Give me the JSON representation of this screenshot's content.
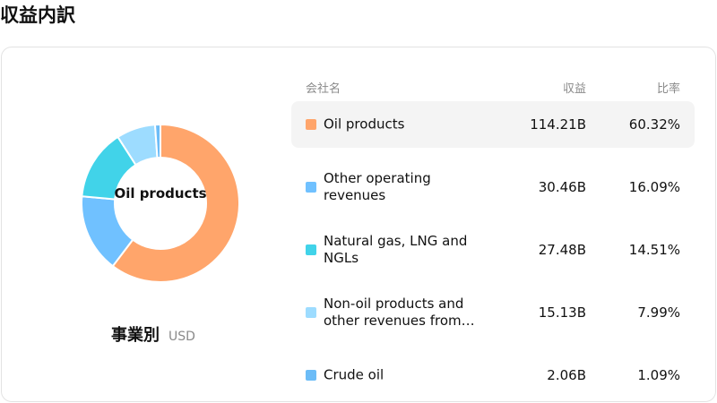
{
  "page": {
    "title": "収益内訳"
  },
  "donut": {
    "center_label": "Oil products",
    "caption_title": "事業別",
    "caption_unit": "USD"
  },
  "table": {
    "headers": {
      "name": "会社名",
      "revenue": "収益",
      "ratio": "比率"
    },
    "rows": [
      {
        "name": "Oil products",
        "revenue": "114.21B",
        "ratio": "60.32%",
        "color": "#ffa56b",
        "active": true
      },
      {
        "name": "Other operating revenues",
        "revenue": "30.46B",
        "ratio": "16.09%",
        "color": "#70c1ff",
        "active": false
      },
      {
        "name": "Natural gas, LNG and NGLs",
        "revenue": "27.48B",
        "ratio": "14.51%",
        "color": "#41d3e9",
        "active": false
      },
      {
        "name": "Non-oil products and other revenues from…",
        "revenue": "15.13B",
        "ratio": "7.99%",
        "color": "#9ddcff",
        "active": false
      },
      {
        "name": "Crude oil",
        "revenue": "2.06B",
        "ratio": "1.09%",
        "color": "#6cbcf7",
        "active": false
      }
    ]
  },
  "chart_data": {
    "type": "pie",
    "categories": [
      "Oil products",
      "Other operating revenues",
      "Natural gas, LNG and NGLs",
      "Non-oil products and other revenues from…",
      "Crude oil"
    ],
    "values": [
      60.32,
      16.09,
      14.51,
      7.99,
      1.09
    ],
    "colors": [
      "#ffa56b",
      "#70c1ff",
      "#41d3e9",
      "#9ddcff",
      "#6cbcf7"
    ],
    "highlighted": "Oil products"
  }
}
